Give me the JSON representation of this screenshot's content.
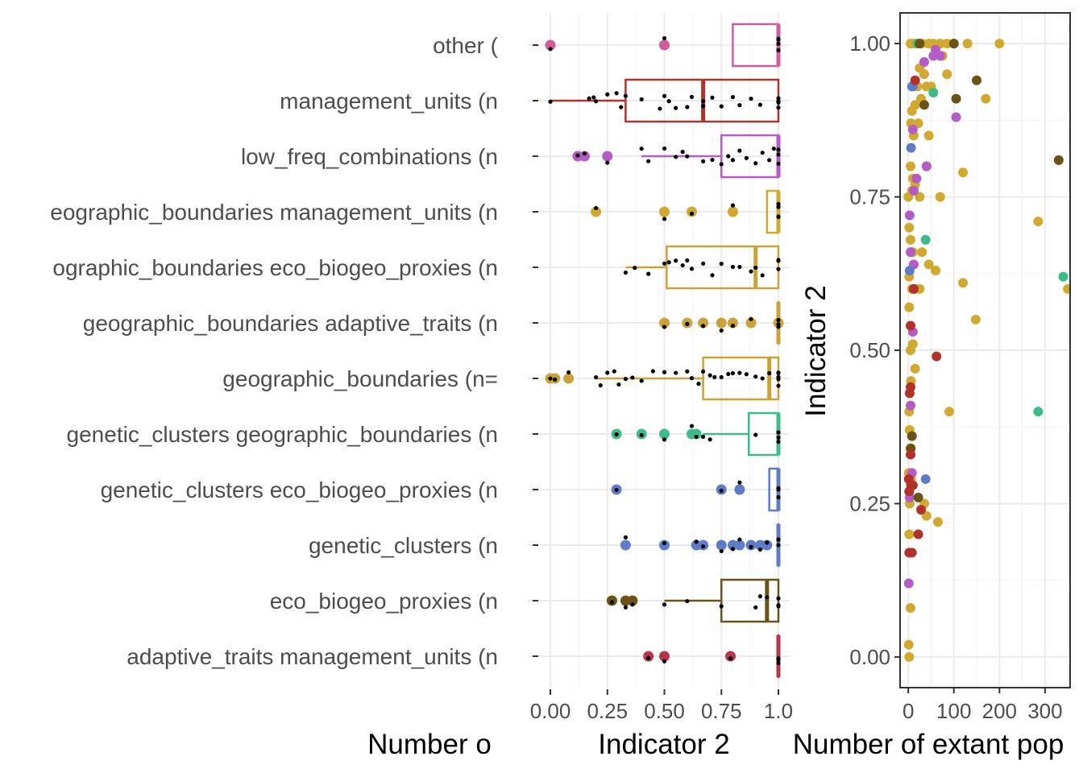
{
  "figure": {
    "left_axis_title": "Number o",
    "panel_a_axis_title": "Indicator 2",
    "panel_b_xlabel": "Number of extant pop",
    "panel_b_ylabel": "Indicator 2"
  },
  "chart_data": [
    {
      "type": "box",
      "title": "",
      "xlabel": "Indicator 2",
      "ylabel": "Number o",
      "xlim": [
        -0.1,
        1.0
      ],
      "grid": true,
      "legend": "none",
      "x_ticks": [
        "0.00",
        "0.25",
        "0.50",
        "0.75",
        "1.0"
      ],
      "x_tick_values": [
        0,
        0.25,
        0.5,
        0.75,
        1.0
      ],
      "categories": [
        "other (",
        "management_units (n",
        "low_freq_combinations (n",
        "eographic_boundaries management_units (n",
        "ographic_boundaries eco_biogeo_proxies (n",
        "geographic_boundaries adaptive_traits (n",
        "geographic_boundaries (n=",
        "genetic_clusters geographic_boundaries (n",
        "genetic_clusters eco_biogeo_proxies (n",
        "genetic_clusters (n",
        "eco_biogeo_proxies (n",
        "adaptive_traits management_units (n"
      ],
      "series": [
        {
          "color": "#d45a9e",
          "q1": 0.8,
          "median": 1.0,
          "q3": 1.0,
          "whisker_low": 0.8,
          "whisker_high": 1.0,
          "outliers": [
            0.0,
            0.5
          ],
          "points": [
            0.0,
            0.5,
            1.0,
            1.0,
            1.0,
            1.0,
            1.0
          ]
        },
        {
          "color": "#b2322a",
          "q1": 0.33,
          "median": 0.67,
          "q3": 1.0,
          "whisker_low": 0.0,
          "whisker_high": 1.0,
          "outliers": [],
          "points": [
            0.0,
            0.17,
            0.19,
            0.2,
            0.25,
            0.29,
            0.31,
            0.33,
            0.4,
            0.48,
            0.5,
            0.52,
            0.55,
            0.6,
            0.62,
            0.67,
            0.67,
            0.71,
            0.75,
            0.8,
            0.83,
            0.88,
            0.92,
            1.0,
            1.0,
            1.0,
            1.0
          ]
        },
        {
          "color": "#b55bc6",
          "q1": 0.75,
          "median": 1.0,
          "q3": 1.0,
          "whisker_low": 0.4,
          "whisker_high": 1.0,
          "outliers": [
            0.12,
            0.15,
            0.25
          ],
          "points": [
            0.12,
            0.15,
            0.25,
            0.4,
            0.43,
            0.5,
            0.55,
            0.58,
            0.6,
            0.67,
            0.71,
            0.75,
            0.78,
            0.8,
            0.83,
            0.86,
            0.9,
            0.93,
            0.96,
            0.98,
            1.0,
            1.0,
            1.0,
            1.0
          ]
        },
        {
          "color": "#d1a92f",
          "q1": 0.95,
          "median": 1.0,
          "q3": 1.0,
          "whisker_low": 0.95,
          "whisker_high": 1.0,
          "outliers": [
            0.2,
            0.5,
            0.62,
            0.8
          ],
          "points": [
            0.2,
            0.5,
            0.62,
            0.8,
            1.0,
            1.0,
            1.0,
            1.0
          ]
        },
        {
          "color": "#c9a33a",
          "q1": 0.51,
          "median": 0.9,
          "q3": 1.0,
          "whisker_low": 0.33,
          "whisker_high": 1.0,
          "outliers": [],
          "points": [
            0.33,
            0.37,
            0.43,
            0.5,
            0.52,
            0.55,
            0.58,
            0.6,
            0.62,
            0.67,
            0.71,
            0.75,
            0.8,
            0.83,
            0.88,
            0.9,
            0.93,
            1.0,
            1.0,
            1.0
          ]
        },
        {
          "color": "#c9a33a",
          "q1": 1.0,
          "median": 1.0,
          "q3": 1.0,
          "whisker_low": 1.0,
          "whisker_high": 1.0,
          "outliers": [
            0.5,
            0.6,
            0.67,
            0.75,
            0.8,
            0.88,
            1.0
          ],
          "points": [
            0.5,
            0.6,
            0.67,
            0.75,
            0.8,
            0.88,
            1.0,
            1.0,
            1.0
          ]
        },
        {
          "color": "#c9a33a",
          "q1": 0.67,
          "median": 0.96,
          "q3": 1.0,
          "whisker_low": 0.2,
          "whisker_high": 1.0,
          "outliers": [
            0.0,
            0.02,
            0.08
          ],
          "points": [
            0.0,
            0.02,
            0.08,
            0.2,
            0.22,
            0.25,
            0.28,
            0.3,
            0.33,
            0.36,
            0.4,
            0.45,
            0.5,
            0.55,
            0.6,
            0.62,
            0.65,
            0.67,
            0.7,
            0.72,
            0.75,
            0.78,
            0.8,
            0.83,
            0.86,
            0.9,
            0.93,
            0.96,
            1.0,
            1.0,
            1.0,
            1.0,
            1.0
          ]
        },
        {
          "color": "#3fbb8a",
          "q1": 0.87,
          "median": 1.0,
          "q3": 1.0,
          "whisker_low": 0.67,
          "whisker_high": 1.0,
          "outliers": [
            0.29,
            0.4,
            0.5,
            0.62,
            0.64
          ],
          "points": [
            0.29,
            0.4,
            0.5,
            0.62,
            0.64,
            0.67,
            0.7,
            0.9,
            1.0,
            1.0,
            1.0,
            1.0
          ]
        },
        {
          "color": "#5f7dc7",
          "q1": 0.96,
          "median": 1.0,
          "q3": 1.0,
          "whisker_low": 0.96,
          "whisker_high": 1.0,
          "outliers": [
            0.29,
            0.75,
            0.83
          ],
          "points": [
            0.29,
            0.75,
            0.83,
            1.0,
            1.0,
            1.0
          ]
        },
        {
          "color": "#5f7dc7",
          "q1": 1.0,
          "median": 1.0,
          "q3": 1.0,
          "whisker_low": 1.0,
          "whisker_high": 1.0,
          "outliers": [
            0.33,
            0.5,
            0.64,
            0.67,
            0.75,
            0.8,
            0.83,
            0.88,
            0.92,
            0.95
          ],
          "points": [
            0.33,
            0.5,
            0.64,
            0.67,
            0.75,
            0.8,
            0.83,
            0.88,
            0.92,
            0.95,
            1.0,
            1.0,
            1.0
          ]
        },
        {
          "color": "#6b5318",
          "q1": 0.75,
          "median": 0.95,
          "q3": 1.0,
          "whisker_low": 0.5,
          "whisker_high": 1.0,
          "outliers": [
            0.27,
            0.33,
            0.36
          ],
          "points": [
            0.27,
            0.33,
            0.36,
            0.5,
            0.6,
            0.75,
            0.9,
            0.92,
            0.95,
            1.0,
            1.0,
            1.0
          ]
        },
        {
          "color": "#b5354d",
          "q1": 1.0,
          "median": 1.0,
          "q3": 1.0,
          "whisker_low": 1.0,
          "whisker_high": 1.0,
          "outliers": [
            0.43,
            0.5,
            0.79
          ],
          "points": [
            0.43,
            0.5,
            0.79,
            1.0,
            1.0,
            1.0
          ]
        }
      ]
    },
    {
      "type": "scatter",
      "title": "",
      "xlabel": "Number of extant pop",
      "ylabel": "Indicator 2",
      "xlim": [
        -18,
        355
      ],
      "ylim": [
        -0.05,
        1.05
      ],
      "grid": true,
      "legend": "none",
      "x_ticks": [
        "0",
        "100",
        "200",
        "300"
      ],
      "x_tick_values": [
        0,
        100,
        200,
        300
      ],
      "y_ticks": [
        "0.00",
        "0.25",
        "0.50",
        "0.75",
        "1.00"
      ],
      "y_tick_values": [
        0,
        0.25,
        0.5,
        0.75,
        1.0
      ],
      "series": [
        {
          "color": "#d1a92f",
          "points": [
            [
              5,
              1.0
            ],
            [
              10,
              1.0
            ],
            [
              15,
              1.0
            ],
            [
              22,
              1.0
            ],
            [
              30,
              1.0
            ],
            [
              45,
              1.0
            ],
            [
              55,
              1.0
            ],
            [
              70,
              1.0
            ],
            [
              85,
              1.0
            ],
            [
              100,
              1.0
            ],
            [
              130,
              1.0
            ],
            [
              200,
              1.0
            ],
            [
              25,
              0.96
            ],
            [
              35,
              0.95
            ],
            [
              40,
              0.93
            ],
            [
              50,
              0.93
            ],
            [
              20,
              0.93
            ],
            [
              28,
              0.91
            ],
            [
              15,
              0.9
            ],
            [
              8,
              0.89
            ],
            [
              6,
              0.87
            ],
            [
              22,
              0.87
            ],
            [
              12,
              0.85
            ],
            [
              45,
              0.85
            ],
            [
              170,
              0.91
            ],
            [
              85,
              0.95
            ],
            [
              75,
              0.98
            ],
            [
              5,
              0.8
            ],
            [
              10,
              0.78
            ],
            [
              15,
              0.77
            ],
            [
              8,
              0.76
            ],
            [
              0,
              0.75
            ],
            [
              25,
              0.75
            ],
            [
              70,
              0.75
            ],
            [
              120,
              0.79
            ],
            [
              40,
              0.8
            ],
            [
              2,
              0.7
            ],
            [
              5,
              0.68
            ],
            [
              10,
              0.66
            ],
            [
              30,
              0.66
            ],
            [
              45,
              0.64
            ],
            [
              2,
              0.62
            ],
            [
              8,
              0.6
            ],
            [
              15,
              0.6
            ],
            [
              25,
              0.6
            ],
            [
              60,
              0.63
            ],
            [
              285,
              0.71
            ],
            [
              350,
              0.6
            ],
            [
              120,
              0.61
            ],
            [
              148,
              0.55
            ],
            [
              2,
              0.57
            ],
            [
              5,
              0.5
            ],
            [
              10,
              0.51
            ],
            [
              6,
              0.45
            ],
            [
              15,
              0.47
            ],
            [
              2,
              0.4
            ],
            [
              3,
              0.37
            ],
            [
              6,
              0.34
            ],
            [
              1,
              0.3
            ],
            [
              2,
              0.27
            ],
            [
              3,
              0.25
            ],
            [
              6,
              0.29
            ],
            [
              40,
              0.23
            ],
            [
              65,
              0.22
            ],
            [
              35,
              0.25
            ],
            [
              2,
              0.2
            ],
            [
              5,
              0.08
            ],
            [
              1,
              0.02
            ],
            [
              2,
              0.0
            ],
            [
              90,
              0.4
            ]
          ]
        },
        {
          "color": "#b55bc6",
          "points": [
            [
              55,
              0.98
            ],
            [
              70,
              0.98
            ],
            [
              60,
              0.99
            ],
            [
              105,
              0.88
            ],
            [
              40,
              0.8
            ],
            [
              10,
              0.86
            ],
            [
              18,
              0.78
            ],
            [
              12,
              0.76
            ],
            [
              3,
              0.72
            ],
            [
              5,
              0.66
            ],
            [
              12,
              0.64
            ],
            [
              10,
              0.53
            ],
            [
              5,
              0.41
            ],
            [
              8,
              0.3
            ],
            [
              3,
              0.26
            ],
            [
              1,
              0.12
            ],
            [
              35,
              0.97
            ]
          ]
        },
        {
          "color": "#5f7dc7",
          "points": [
            [
              10,
              0.93
            ],
            [
              6,
              0.83
            ],
            [
              3,
              0.63
            ],
            [
              38,
              0.29
            ],
            [
              8,
              0.93
            ]
          ]
        },
        {
          "color": "#3fbb8a",
          "points": [
            [
              20,
              1.0
            ],
            [
              340,
              0.62
            ],
            [
              285,
              0.4
            ],
            [
              55,
              0.92
            ],
            [
              38,
              0.68
            ]
          ]
        },
        {
          "color": "#6b5318",
          "points": [
            [
              25,
              1.0
            ],
            [
              100,
              1.0
            ],
            [
              150,
              0.94
            ],
            [
              105,
              0.91
            ],
            [
              35,
              0.9
            ],
            [
              330,
              0.81
            ],
            [
              8,
              0.36
            ],
            [
              5,
              0.34
            ],
            [
              22,
              0.26
            ]
          ]
        },
        {
          "color": "#b2322a",
          "points": [
            [
              15,
              0.94
            ],
            [
              62,
              0.49
            ],
            [
              5,
              0.54
            ],
            [
              5,
              0.44
            ],
            [
              3,
              0.43
            ],
            [
              1,
              0.29
            ],
            [
              2,
              0.27
            ],
            [
              6,
              0.28
            ],
            [
              10,
              0.28
            ],
            [
              28,
              0.24
            ],
            [
              22,
              0.2
            ],
            [
              2,
              0.17
            ],
            [
              8,
              0.17
            ],
            [
              12,
              0.6
            ],
            [
              5,
              0.33
            ]
          ]
        }
      ]
    }
  ]
}
